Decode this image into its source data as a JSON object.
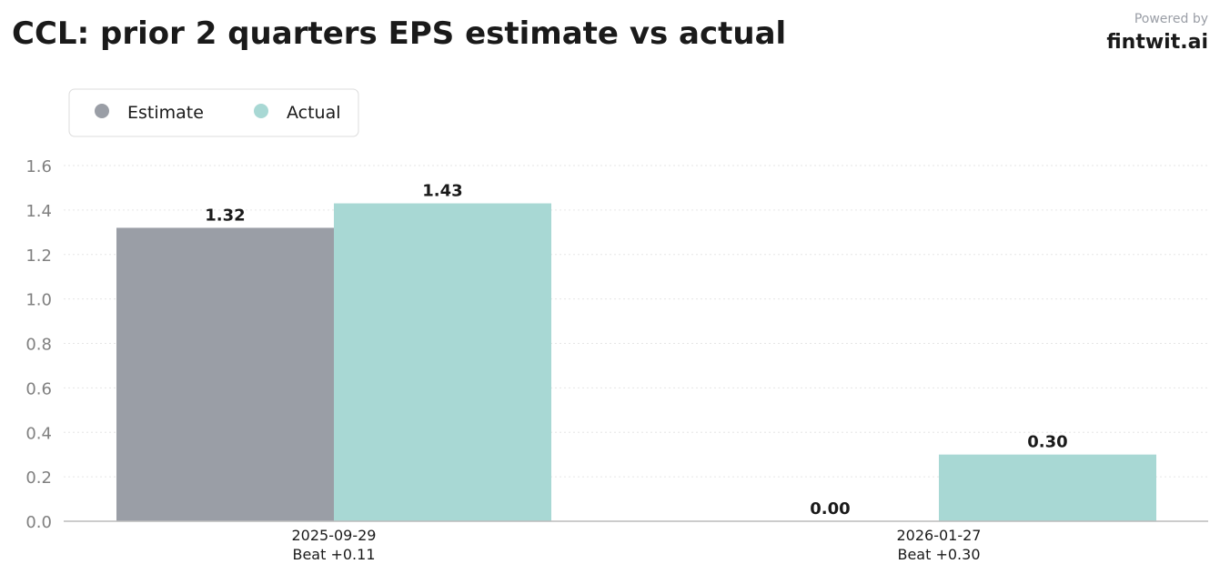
{
  "header": {
    "title": "CCL: prior 2 quarters EPS estimate vs actual",
    "powered_by": "Powered by",
    "brand": "fintwit.ai"
  },
  "chart_data": {
    "type": "bar",
    "title": "CCL: prior 2 quarters EPS estimate vs actual",
    "categories": [
      "2025-09-29",
      "2026-01-27"
    ],
    "category_sublabels": [
      "Beat +0.11",
      "Beat +0.30"
    ],
    "series": [
      {
        "name": "Estimate",
        "color": "#9a9ea6",
        "values": [
          1.32,
          0.0
        ],
        "labels": [
          "1.32",
          "0.00"
        ]
      },
      {
        "name": "Actual",
        "color": "#a8d8d4",
        "values": [
          1.43,
          0.3
        ],
        "labels": [
          "1.43",
          "0.30"
        ]
      }
    ],
    "ylim": [
      0,
      1.6
    ],
    "yticks": [
      "0.0",
      "0.2",
      "0.4",
      "0.6",
      "0.8",
      "1.0",
      "1.2",
      "1.4",
      "1.6"
    ],
    "xlabel": "",
    "ylabel": "",
    "grid": true,
    "legend_position": "top-left"
  }
}
